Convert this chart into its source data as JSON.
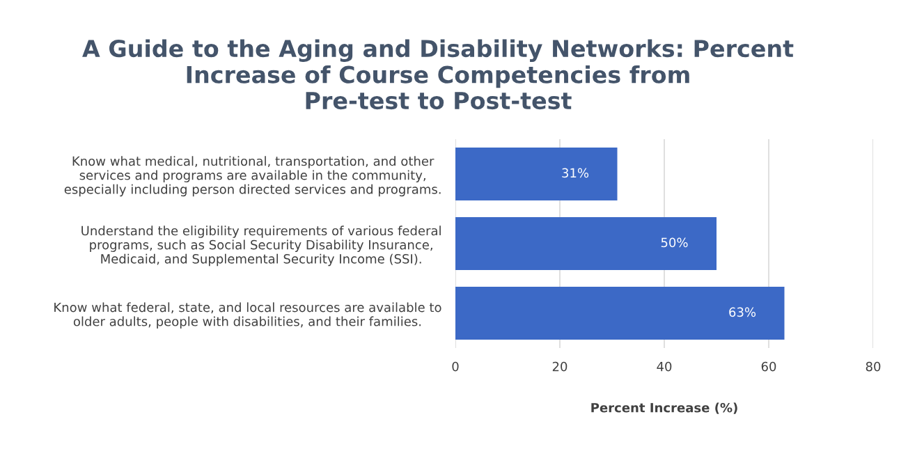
{
  "chart_data": {
    "type": "bar",
    "orientation": "horizontal",
    "title": "A Guide to the Aging and Disability Networks: Percent\nIncrease of Course Competencies from\nPre-test to Post-test",
    "xlabel": "Percent Increase (%)",
    "categories": [
      "Know what medical, nutritional, transportation, and other\nservices and programs are available in the community,\nespecially including person directed services and programs.",
      "Understand the eligibility requirements of various federal\nprograms, such as Social Security Disability Insurance,\nMedicaid, and Supplemental Security Income (SSI).",
      "Know what federal, state, and local resources are available to\nolder adults, people with disabilities, and their families."
    ],
    "values": [
      31,
      50,
      63
    ],
    "value_labels": [
      "31%",
      "50%",
      "63%"
    ],
    "color": "#3c69c6",
    "xlim": [
      0,
      80
    ],
    "xticks": [
      0,
      20,
      40,
      60,
      80
    ],
    "grid": "x",
    "legend": false
  }
}
